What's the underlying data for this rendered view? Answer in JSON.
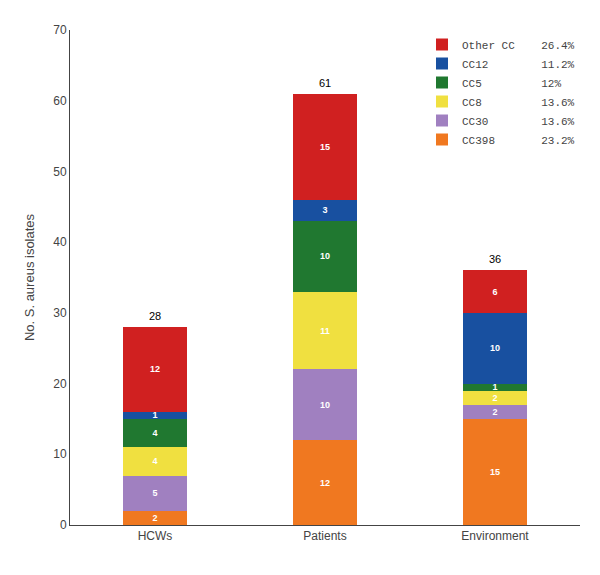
{
  "chart_data": {
    "type": "bar",
    "stacked": true,
    "data_labels": true,
    "y_label": "No. S. aureus isolates",
    "categories": [
      "HCWs",
      "Patients",
      "Environment"
    ],
    "series": [
      {
        "name": "CC398       23.2%",
        "color": "#F07820",
        "values": [
          2,
          12,
          15
        ]
      },
      {
        "name": "CC30        13.6%",
        "color": "#A080C0",
        "values": [
          5,
          10,
          2
        ]
      },
      {
        "name": "CC8         13.6%",
        "color": "#F0E040",
        "values": [
          4,
          11,
          2
        ]
      },
      {
        "name": "CC5         12%",
        "color": "#207830",
        "values": [
          4,
          10,
          1
        ]
      },
      {
        "name": "CC12        11.2%",
        "color": "#1850A0",
        "values": [
          1,
          3,
          10
        ]
      },
      {
        "name": "Other CC    26.4%",
        "color": "#D02020",
        "values": [
          12,
          15,
          6
        ]
      }
    ],
    "totals": [
      28,
      61,
      36
    ],
    "ylim": [
      0,
      70
    ],
    "yticks": [
      0,
      10,
      20,
      30,
      40,
      50,
      60,
      70
    ],
    "legend": "upper right",
    "grid": false
  }
}
